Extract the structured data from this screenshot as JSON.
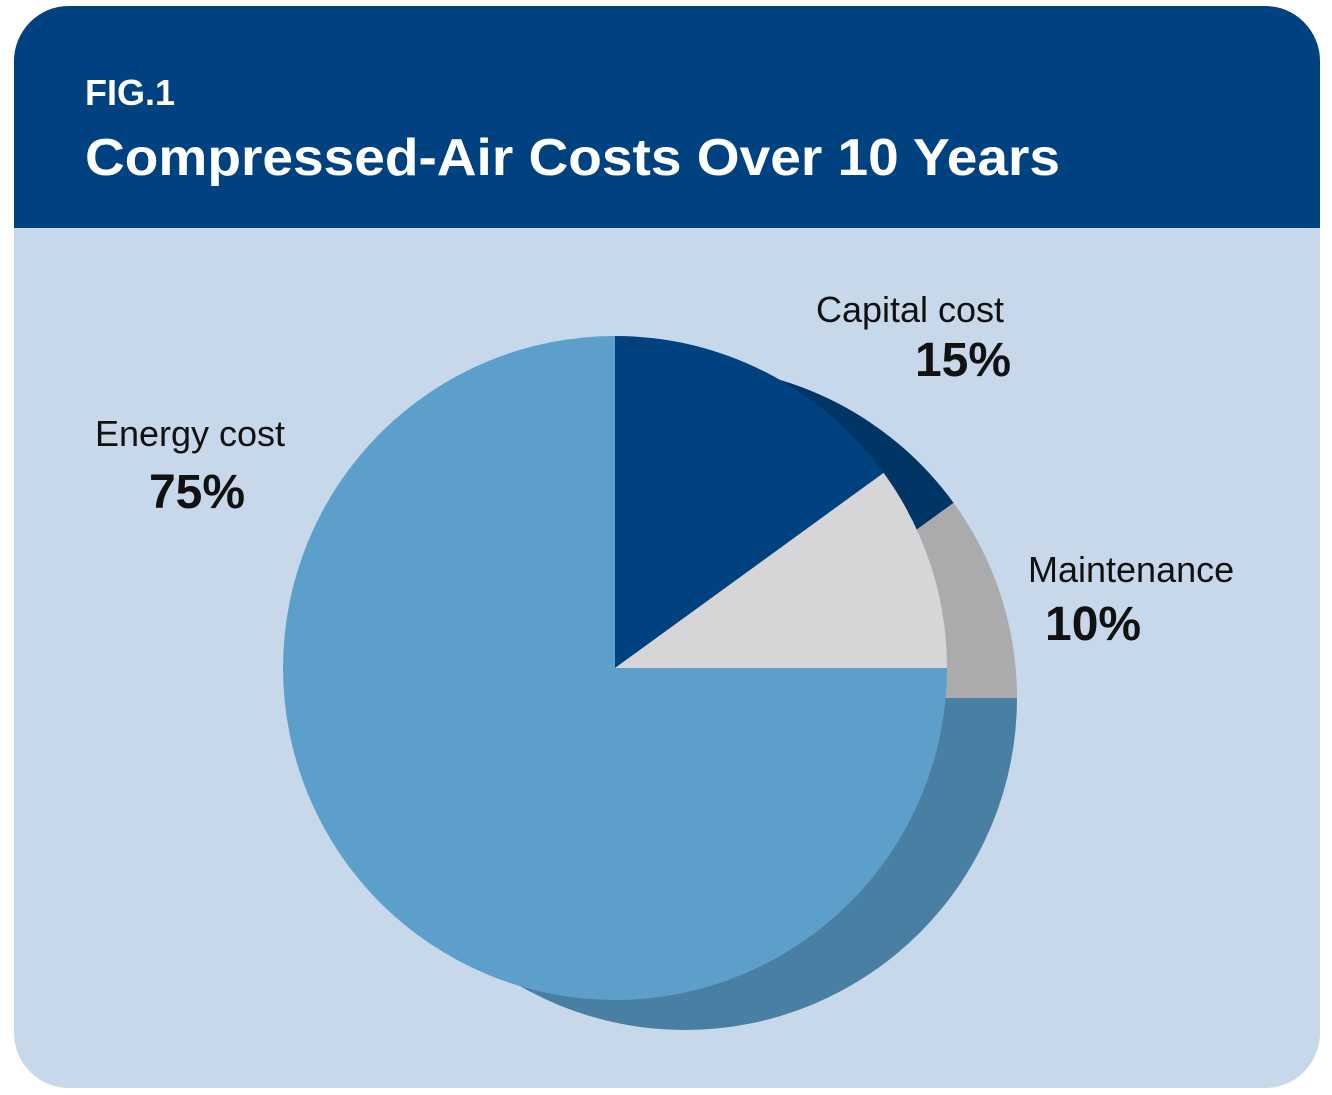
{
  "chart_data": {
    "type": "pie",
    "subtitle": "FIG.1",
    "title": "Compressed-Air Costs Over 10 Years",
    "categories": [
      "Capital cost",
      "Maintenance",
      "Energy cost"
    ],
    "values": [
      15,
      10,
      75
    ],
    "value_labels": [
      "15%",
      "10%",
      "75%"
    ],
    "colors": [
      "#00427f",
      "#d6d6d8",
      "#5b9fca"
    ]
  }
}
